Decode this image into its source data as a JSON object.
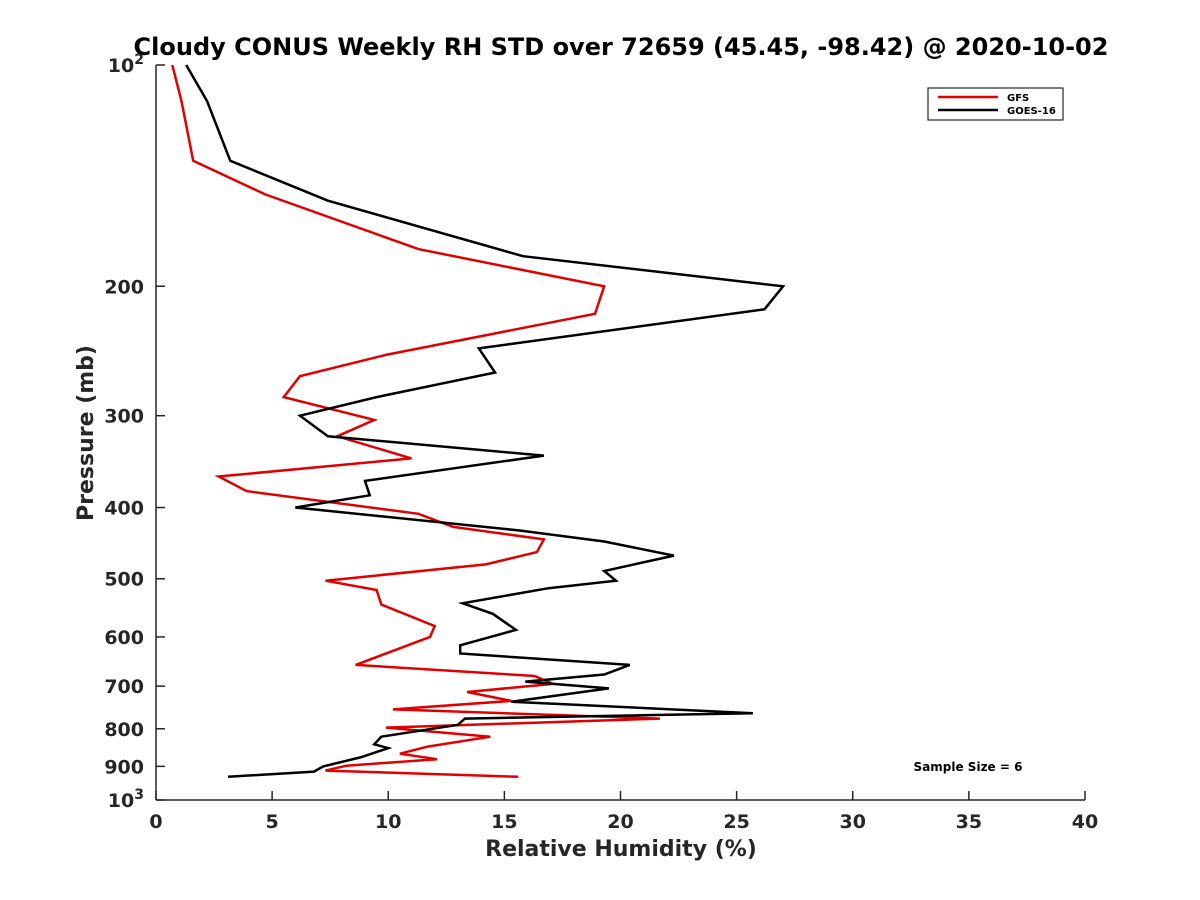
{
  "chart_data": {
    "type": "line",
    "title": "Cloudy CONUS Weekly RH STD over 72659 (45.45, -98.42) @ 2020-10-02",
    "xlabel": "Relative Humidity (%)",
    "ylabel": "Pressure (mb)",
    "xlim": [
      0,
      40
    ],
    "ylim": [
      100,
      1000
    ],
    "yscale": "log",
    "y_reversed": true,
    "grid": false,
    "legend_position": "top-right",
    "x_ticks": [
      "0",
      "5",
      "10",
      "15",
      "20",
      "25",
      "30",
      "35",
      "40"
    ],
    "y_ticks": [
      {
        "value": 100,
        "base": "10",
        "exp": "2"
      },
      {
        "value": 200,
        "label": "200"
      },
      {
        "value": 300,
        "label": "300"
      },
      {
        "value": 400,
        "label": "400"
      },
      {
        "value": 500,
        "label": "500"
      },
      {
        "value": 600,
        "label": "600"
      },
      {
        "value": 700,
        "label": "700"
      },
      {
        "value": 800,
        "label": "800"
      },
      {
        "value": 900,
        "label": "900"
      },
      {
        "value": 1000,
        "base": "10",
        "exp": "3"
      }
    ],
    "annotation": "Sample Size = 6",
    "series": [
      {
        "name": "GFS",
        "color": "#e00000",
        "x": [
          0.7,
          1.1,
          1.6,
          4.7,
          11.3,
          19.3,
          18.9,
          9.9,
          6.2,
          5.5,
          9.4,
          7.8,
          11.0,
          2.7,
          3.9,
          11.3,
          12.8,
          16.7,
          16.4,
          14.2,
          7.3,
          9.5,
          9.7,
          12.0,
          11.8,
          8.6,
          16.3,
          17.1,
          13.4,
          15.3,
          10.2,
          21.7,
          9.9,
          14.4,
          11.7,
          10.5,
          12.1,
          8.2,
          7.3,
          15.6
        ],
        "y": [
          100,
          112,
          135,
          150,
          178,
          200,
          218,
          248,
          265,
          283,
          304,
          320,
          343,
          363,
          380,
          408,
          425,
          442,
          460,
          478,
          503,
          518,
          542,
          580,
          600,
          655,
          678,
          695,
          713,
          733,
          753,
          775,
          797,
          820,
          846,
          865,
          880,
          898,
          912,
          930
        ]
      },
      {
        "name": "GOES-16",
        "color": "#000000",
        "x": [
          1.3,
          2.2,
          3.2,
          7.4,
          15.8,
          27.0,
          26.2,
          13.9,
          14.6,
          9.5,
          6.2,
          7.4,
          16.7,
          9.0,
          9.2,
          6.0,
          15.7,
          19.3,
          22.3,
          19.3,
          19.8,
          16.9,
          13.2,
          14.5,
          15.5,
          13.1,
          13.1,
          20.4,
          19.3,
          15.9,
          19.5,
          15.3,
          25.7,
          13.3,
          13.0,
          9.7,
          9.4,
          10.0,
          8.8,
          7.2,
          6.8,
          3.1
        ],
        "y": [
          100,
          112,
          135,
          153,
          182,
          200,
          215,
          243,
          262,
          283,
          300,
          320,
          340,
          368,
          385,
          400,
          430,
          445,
          465,
          488,
          503,
          515,
          540,
          558,
          587,
          616,
          632,
          655,
          675,
          690,
          705,
          735,
          762,
          775,
          790,
          820,
          840,
          850,
          875,
          900,
          915,
          930
        ]
      }
    ]
  }
}
